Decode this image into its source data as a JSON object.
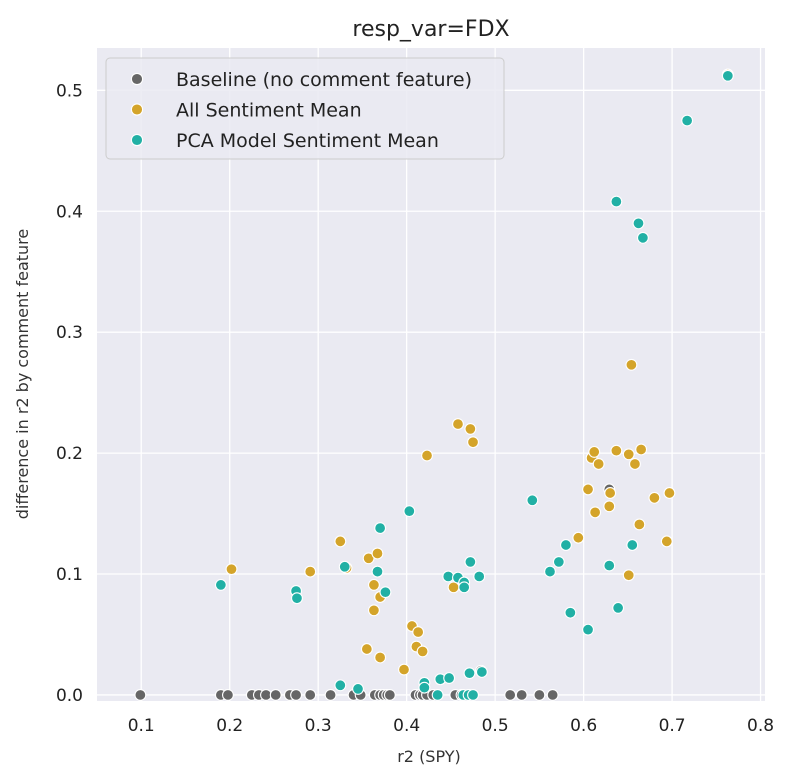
{
  "chart_data": {
    "type": "scatter",
    "title": "resp_var=FDX",
    "xlabel": "r2 (SPY)",
    "ylabel": "difference in r2 by comment feature",
    "xlim": [
      0.05,
      0.805
    ],
    "ylim": [
      -0.005,
      0.535
    ],
    "xticks": [
      0.1,
      0.2,
      0.3,
      0.4,
      0.5,
      0.6,
      0.7,
      0.8
    ],
    "yticks": [
      0.0,
      0.1,
      0.2,
      0.3,
      0.4,
      0.5
    ],
    "xtick_labels": [
      "0.1",
      "0.2",
      "0.3",
      "0.4",
      "0.5",
      "0.6",
      "0.7",
      "0.8"
    ],
    "ytick_labels": [
      "0.0",
      "0.1",
      "0.2",
      "0.3",
      "0.4",
      "0.5"
    ],
    "grid": true,
    "legend_position": "top-left",
    "series": [
      {
        "name": "Baseline (no comment feature)",
        "color": "#666666",
        "points": [
          [
            0.099,
            0.0
          ],
          [
            0.19,
            0.0
          ],
          [
            0.198,
            0.0
          ],
          [
            0.225,
            0.0
          ],
          [
            0.233,
            0.0
          ],
          [
            0.241,
            0.0
          ],
          [
            0.252,
            0.0
          ],
          [
            0.268,
            0.0
          ],
          [
            0.275,
            0.0
          ],
          [
            0.291,
            0.0
          ],
          [
            0.314,
            0.0
          ],
          [
            0.34,
            0.0
          ],
          [
            0.348,
            0.0
          ],
          [
            0.364,
            0.0
          ],
          [
            0.37,
            0.0
          ],
          [
            0.374,
            0.0
          ],
          [
            0.378,
            0.0
          ],
          [
            0.381,
            0.0
          ],
          [
            0.41,
            0.0
          ],
          [
            0.415,
            0.0
          ],
          [
            0.418,
            0.0
          ],
          [
            0.423,
            0.0
          ],
          [
            0.43,
            0.0
          ],
          [
            0.455,
            0.0
          ],
          [
            0.462,
            0.0
          ],
          [
            0.47,
            0.0
          ],
          [
            0.484,
            0.02
          ],
          [
            0.517,
            0.0
          ],
          [
            0.53,
            0.0
          ],
          [
            0.55,
            0.0
          ],
          [
            0.565,
            0.0
          ],
          [
            0.629,
            0.17
          ],
          [
            0.763,
            0.513
          ]
        ]
      },
      {
        "name": "All Sentiment Mean",
        "color": "#d4a42a",
        "points": [
          [
            0.202,
            0.104
          ],
          [
            0.291,
            0.102
          ],
          [
            0.325,
            0.127
          ],
          [
            0.332,
            0.105
          ],
          [
            0.355,
            0.038
          ],
          [
            0.357,
            0.113
          ],
          [
            0.363,
            0.091
          ],
          [
            0.363,
            0.07
          ],
          [
            0.367,
            0.117
          ],
          [
            0.37,
            0.081
          ],
          [
            0.37,
            0.031
          ],
          [
            0.397,
            0.021
          ],
          [
            0.406,
            0.057
          ],
          [
            0.411,
            0.04
          ],
          [
            0.413,
            0.052
          ],
          [
            0.418,
            0.036
          ],
          [
            0.423,
            0.198
          ],
          [
            0.453,
            0.089
          ],
          [
            0.458,
            0.224
          ],
          [
            0.472,
            0.22
          ],
          [
            0.475,
            0.209
          ],
          [
            0.594,
            0.13
          ],
          [
            0.605,
            0.17
          ],
          [
            0.609,
            0.196
          ],
          [
            0.612,
            0.201
          ],
          [
            0.613,
            0.151
          ],
          [
            0.617,
            0.191
          ],
          [
            0.629,
            0.156
          ],
          [
            0.63,
            0.167
          ],
          [
            0.637,
            0.202
          ],
          [
            0.651,
            0.199
          ],
          [
            0.651,
            0.099
          ],
          [
            0.654,
            0.273
          ],
          [
            0.658,
            0.191
          ],
          [
            0.663,
            0.141
          ],
          [
            0.665,
            0.203
          ],
          [
            0.68,
            0.163
          ],
          [
            0.694,
            0.127
          ],
          [
            0.697,
            0.167
          ],
          [
            0.763,
            0.513
          ]
        ]
      },
      {
        "name": "PCA Model Sentiment Mean",
        "color": "#21b0a5",
        "points": [
          [
            0.19,
            0.091
          ],
          [
            0.275,
            0.086
          ],
          [
            0.276,
            0.08
          ],
          [
            0.325,
            0.008
          ],
          [
            0.33,
            0.106
          ],
          [
            0.345,
            0.005
          ],
          [
            0.367,
            0.102
          ],
          [
            0.37,
            0.138
          ],
          [
            0.376,
            0.085
          ],
          [
            0.403,
            0.152
          ],
          [
            0.42,
            0.01
          ],
          [
            0.42,
            0.006
          ],
          [
            0.435,
            0.0
          ],
          [
            0.438,
            0.013
          ],
          [
            0.447,
            0.098
          ],
          [
            0.448,
            0.014
          ],
          [
            0.458,
            0.097
          ],
          [
            0.464,
            0.0
          ],
          [
            0.465,
            0.093
          ],
          [
            0.465,
            0.089
          ],
          [
            0.47,
            0.0
          ],
          [
            0.471,
            0.018
          ],
          [
            0.472,
            0.11
          ],
          [
            0.475,
            0.0
          ],
          [
            0.482,
            0.098
          ],
          [
            0.485,
            0.019
          ],
          [
            0.542,
            0.161
          ],
          [
            0.562,
            0.102
          ],
          [
            0.572,
            0.11
          ],
          [
            0.58,
            0.124
          ],
          [
            0.585,
            0.068
          ],
          [
            0.605,
            0.054
          ],
          [
            0.629,
            0.107
          ],
          [
            0.637,
            0.408
          ],
          [
            0.639,
            0.072
          ],
          [
            0.655,
            0.124
          ],
          [
            0.662,
            0.39
          ],
          [
            0.667,
            0.378
          ],
          [
            0.717,
            0.475
          ],
          [
            0.763,
            0.512
          ]
        ]
      }
    ]
  }
}
